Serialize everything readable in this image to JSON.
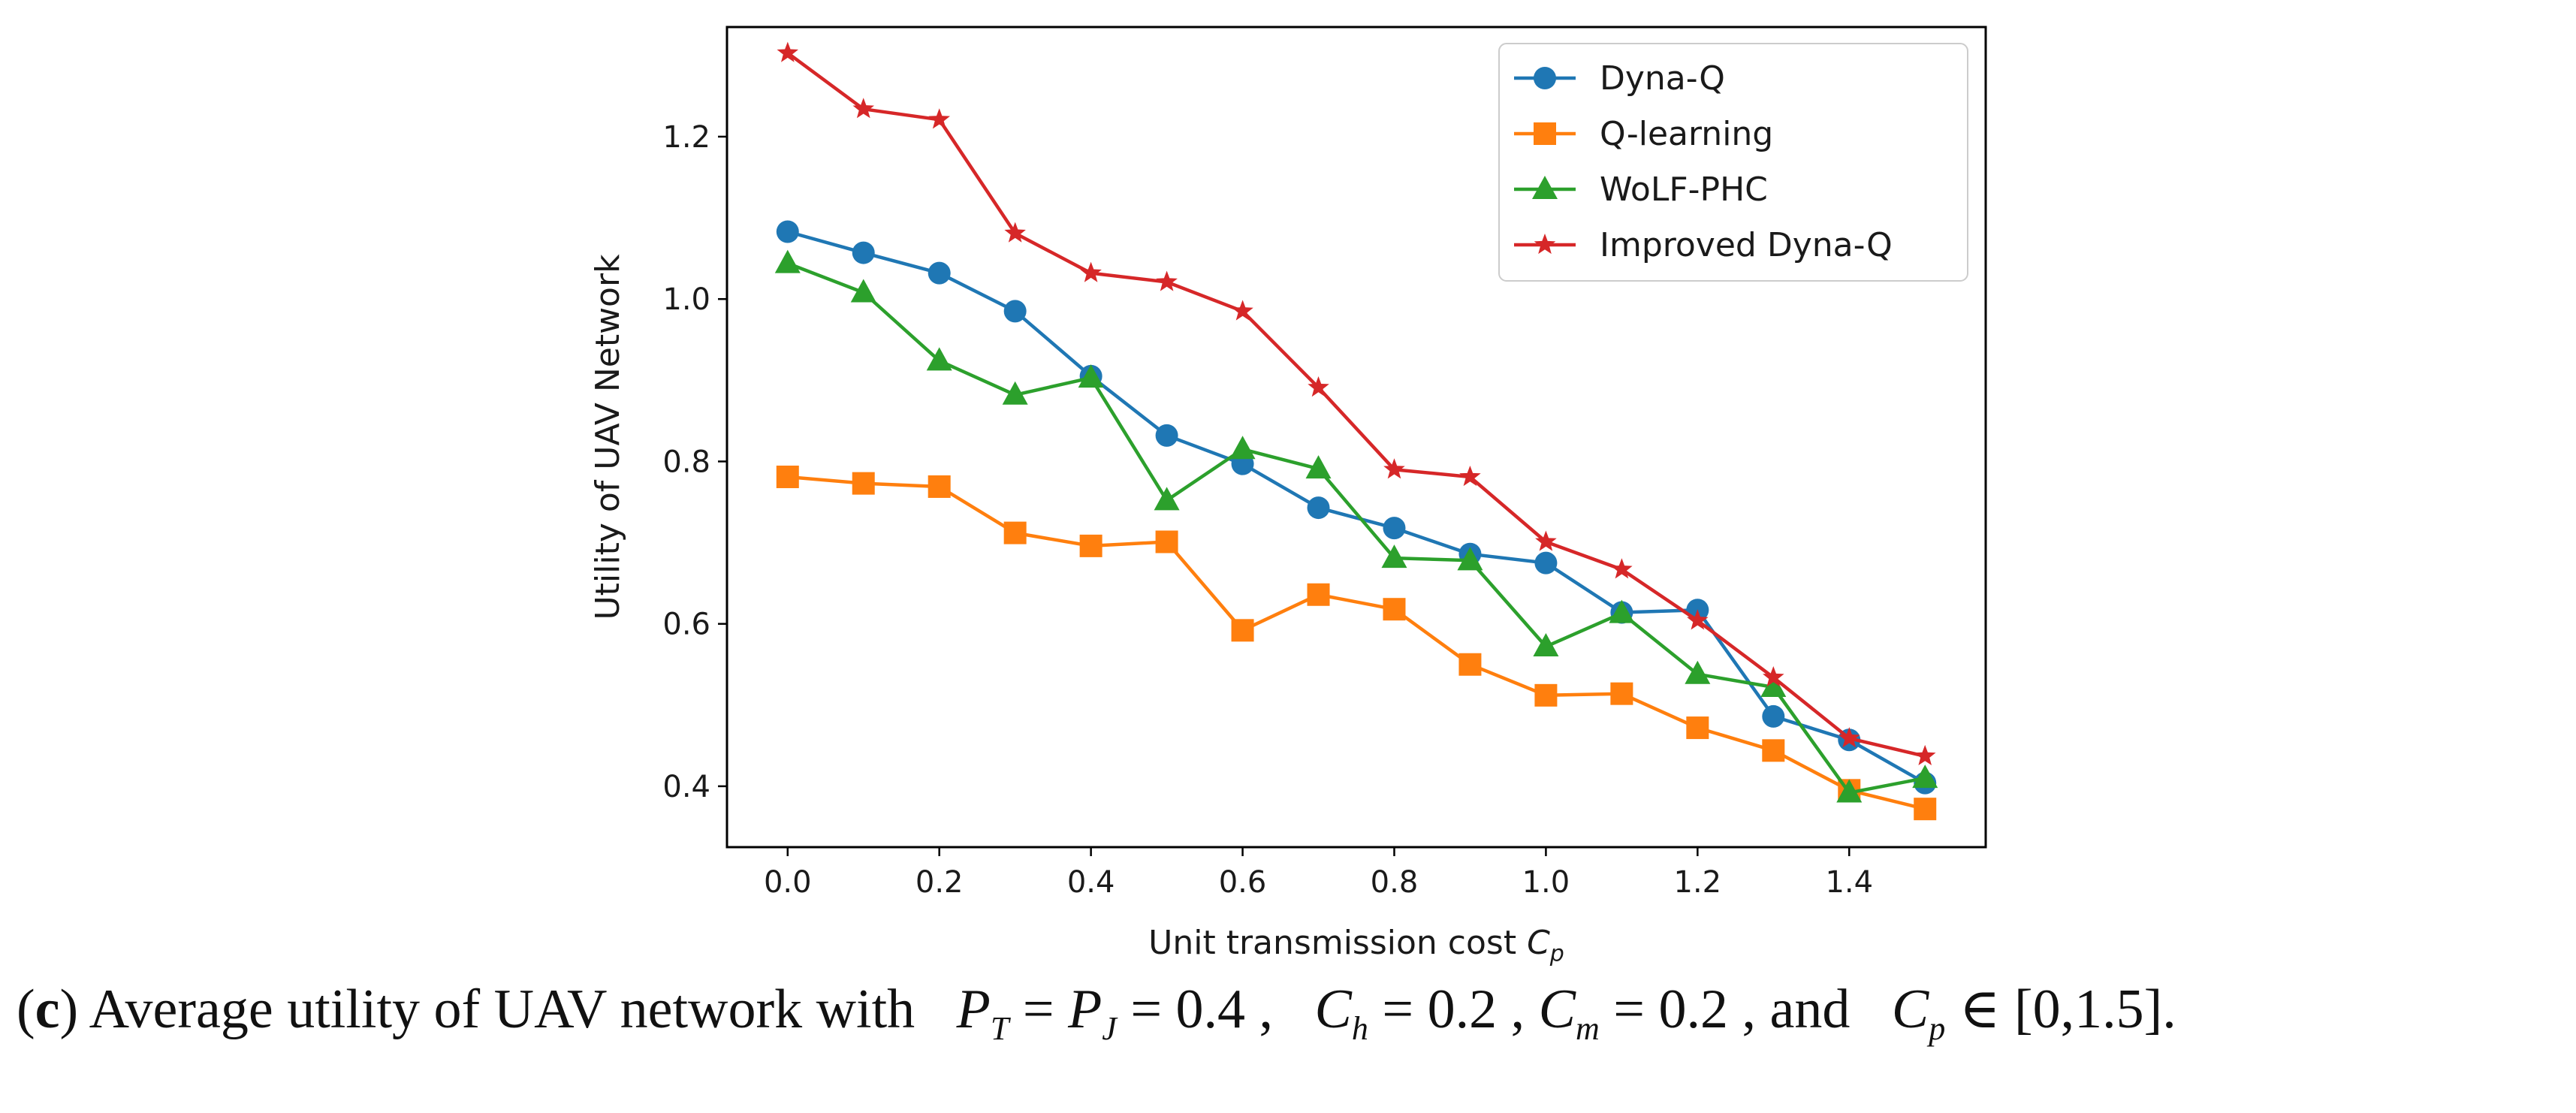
{
  "chart_data": {
    "type": "line",
    "title": "",
    "xlabel_prefix": "Unit transmission cost ",
    "xlabel_symbol": "C",
    "xlabel_sub": "p",
    "ylabel": "Utility of UAV Network",
    "xlim": [
      -0.08,
      1.58
    ],
    "ylim": [
      0.325,
      1.335
    ],
    "xticks": [
      "0.0",
      "0.2",
      "0.4",
      "0.6",
      "0.8",
      "1.0",
      "1.2",
      "1.4"
    ],
    "yticks": [
      "0.4",
      "0.6",
      "0.8",
      "1.0",
      "1.2"
    ],
    "x": [
      0.0,
      0.1,
      0.2,
      0.3,
      0.4,
      0.5,
      0.6,
      0.7,
      0.8,
      0.9,
      1.0,
      1.1,
      1.2,
      1.3,
      1.4,
      1.5
    ],
    "legend_position": "top-right",
    "series": [
      {
        "name": "Dyna-Q",
        "color": "#1f77b4",
        "marker": "circle",
        "values": [
          1.083,
          1.057,
          1.032,
          0.985,
          0.905,
          0.832,
          0.797,
          0.743,
          0.718,
          0.686,
          0.675,
          0.614,
          0.617,
          0.486,
          0.457,
          0.404
        ]
      },
      {
        "name": "Q-learning",
        "color": "#ff7f0e",
        "marker": "square",
        "values": [
          0.781,
          0.773,
          0.769,
          0.712,
          0.696,
          0.701,
          0.592,
          0.636,
          0.618,
          0.55,
          0.512,
          0.514,
          0.472,
          0.444,
          0.395,
          0.372
        ]
      },
      {
        "name": "WoLF-PHC",
        "color": "#2ca02c",
        "marker": "triangle",
        "values": [
          1.044,
          1.008,
          0.924,
          0.882,
          0.903,
          0.752,
          0.815,
          0.791,
          0.681,
          0.678,
          0.572,
          0.613,
          0.538,
          0.522,
          0.392,
          0.41
        ]
      },
      {
        "name": "Improved Dyna-Q",
        "color": "#d62728",
        "marker": "star",
        "values": [
          1.303,
          1.234,
          1.221,
          1.081,
          1.032,
          1.021,
          0.985,
          0.891,
          0.79,
          0.781,
          0.701,
          0.667,
          0.604,
          0.534,
          0.459,
          0.437
        ]
      }
    ]
  },
  "caption": {
    "label": "c",
    "text_main": " Average utility of UAV network with",
    "pt": "P",
    "pt_sub": "T",
    "eq1": " = ",
    "pj": "P",
    "pj_sub": "J",
    "val1": " = 0.4 , ",
    "ch": "C",
    "ch_sub": "h",
    "val2": " = 0.2 , ",
    "cm": "C",
    "cm_sub": "m",
    "val3": " = 0.2 , and ",
    "cp": "C",
    "cp_sub": "p",
    "range": " ∈ [0,1.5]."
  }
}
